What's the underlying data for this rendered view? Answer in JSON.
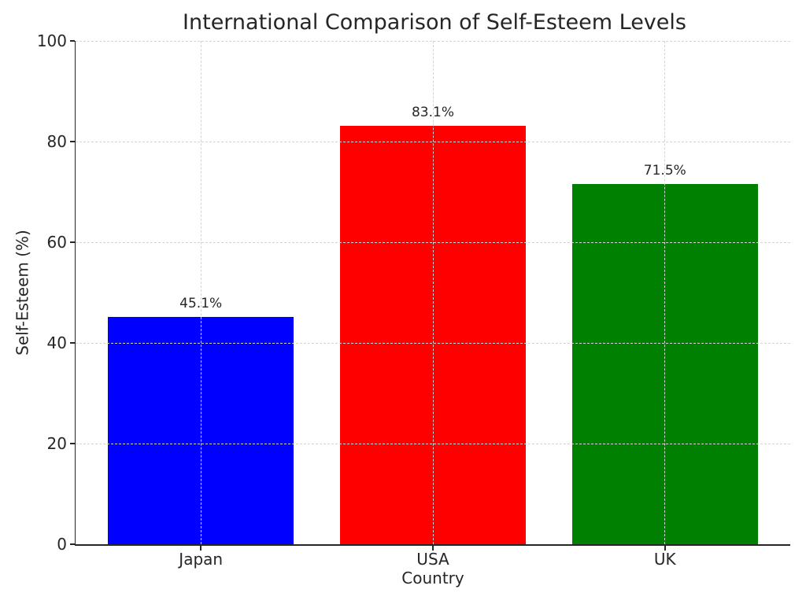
{
  "chart_data": {
    "type": "bar",
    "title": "International Comparison of Self-Esteem Levels",
    "xlabel": "Country",
    "ylabel": "Self-Esteem (%)",
    "categories": [
      "Japan",
      "USA",
      "UK"
    ],
    "values": [
      45.1,
      83.1,
      71.5
    ],
    "value_labels": [
      "45.1%",
      "83.1%",
      "71.5%"
    ],
    "bar_colors": [
      "#0000ff",
      "#ff0000",
      "#008000"
    ],
    "ylim": [
      0,
      100
    ],
    "yticks": [
      0,
      20,
      40,
      60,
      80,
      100
    ],
    "grid": {
      "horizontal": true,
      "vertical": true,
      "style": "dashed",
      "above_bars": true
    },
    "legend_position": "none"
  },
  "style": {
    "background": "#ffffff",
    "text_color": "#262626",
    "axis_color": "#262626",
    "grid_color": "#d4d4d4"
  }
}
